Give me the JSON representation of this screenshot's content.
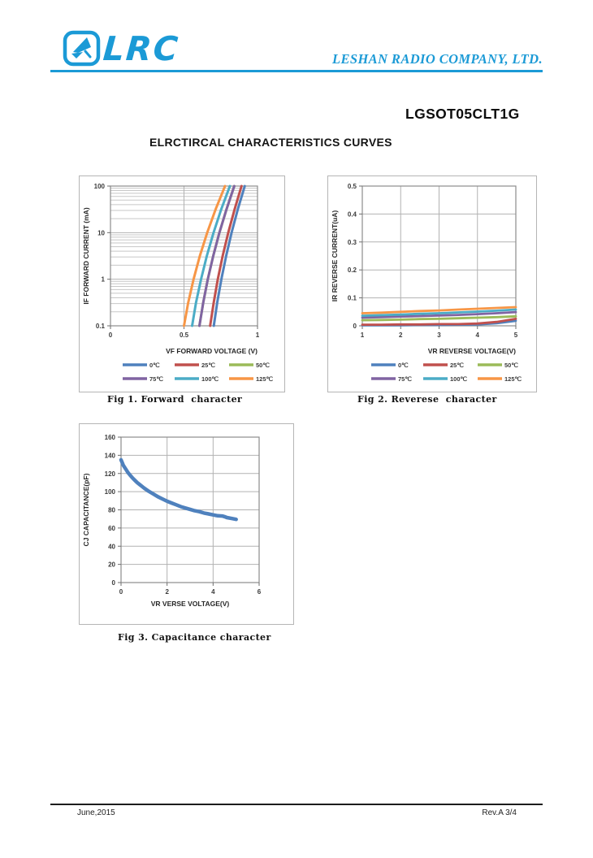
{
  "page": {
    "accent_color": "#1b9ad6",
    "header": {
      "logo_text": "LRC",
      "logo_icon": "satellite-dish-icon",
      "company": "LESHAN RADIO COMPANY, LTD."
    },
    "part_number": "LGSOT05CLT1G",
    "section_title": "ELRCTIRCAL CHARACTERISTICS CURVES",
    "footer": {
      "date": "June,2015",
      "rev": "Rev.A 3/4"
    }
  },
  "chart_data": [
    {
      "id": "fig1",
      "type": "line",
      "caption": "Fig 1. Forward  character",
      "xlabel": "VF FORWARD VOLTAGE (V)",
      "ylabel": "IF FORWARD CURRENT (mA)",
      "xlim": [
        0,
        1
      ],
      "x_ticks": [
        0,
        0.5,
        1
      ],
      "x_tick_labels": [
        "0",
        "0.5",
        "1"
      ],
      "yscale": "log",
      "ylim": [
        0.1,
        100
      ],
      "y_ticks": [
        0.1,
        1,
        10,
        100
      ],
      "y_tick_labels": [
        "0.1",
        "1",
        "10",
        "100"
      ],
      "grid": true,
      "legend_position": "bottom",
      "series": [
        {
          "name": "0℃",
          "color": "#4F81BD",
          "points": [
            [
              0.703,
              0.1
            ],
            [
              0.726,
              0.316
            ],
            [
              0.754,
              1
            ],
            [
              0.787,
              3.16
            ],
            [
              0.824,
              10
            ],
            [
              0.866,
              31.6
            ],
            [
              0.913,
              100
            ]
          ]
        },
        {
          "name": "25℃",
          "color": "#C0504D",
          "points": [
            [
              0.678,
              0.1
            ],
            [
              0.702,
              0.316
            ],
            [
              0.73,
              1
            ],
            [
              0.763,
              3.16
            ],
            [
              0.801,
              10
            ],
            [
              0.844,
              31.6
            ],
            [
              0.891,
              100
            ]
          ]
        },
        {
          "name": "50℃",
          "color": "#9BBB59",
          "points": [
            [
              0.605,
              0.1
            ],
            [
              0.631,
              0.316
            ],
            [
              0.662,
              1
            ],
            [
              0.699,
              3.16
            ],
            [
              0.741,
              10
            ],
            [
              0.789,
              31.6
            ],
            [
              0.842,
              100
            ]
          ]
        },
        {
          "name": "75℃",
          "color": "#8064A2",
          "points": [
            [
              0.605,
              0.1
            ],
            [
              0.631,
              0.316
            ],
            [
              0.662,
              1
            ],
            [
              0.699,
              3.16
            ],
            [
              0.741,
              10
            ],
            [
              0.789,
              31.6
            ],
            [
              0.842,
              100
            ]
          ]
        },
        {
          "name": "100℃",
          "color": "#4BACC6",
          "points": [
            [
              0.555,
              0.1
            ],
            [
              0.582,
              0.316
            ],
            [
              0.616,
              1
            ],
            [
              0.655,
              3.16
            ],
            [
              0.701,
              10
            ],
            [
              0.753,
              31.6
            ],
            [
              0.812,
              100
            ]
          ]
        },
        {
          "name": "125℃",
          "color": "#F79646",
          "points": [
            [
              0.5,
              0.1
            ],
            [
              0.529,
              0.316
            ],
            [
              0.565,
              1
            ],
            [
              0.608,
              3.16
            ],
            [
              0.658,
              10
            ],
            [
              0.715,
              31.6
            ],
            [
              0.779,
              100
            ]
          ]
        }
      ]
    },
    {
      "id": "fig2",
      "type": "line",
      "caption": "Fig 2. Reverese  character",
      "xlabel": "VR REVERSE VOLTAGE(V)",
      "ylabel": "IR REVERSE CURRENT(uA)",
      "xlim": [
        1,
        5
      ],
      "x_ticks": [
        1,
        2,
        3,
        4,
        5
      ],
      "x_tick_labels": [
        "1",
        "2",
        "3",
        "4",
        "5"
      ],
      "yscale": "linear",
      "ylim": [
        0,
        0.5
      ],
      "y_ticks": [
        0,
        0.1,
        0.2,
        0.3,
        0.4,
        0.5
      ],
      "y_tick_labels": [
        "0",
        "0.1",
        "0.2",
        "0.3",
        "0.4",
        "0.5"
      ],
      "grid": true,
      "legend_position": "bottom",
      "series": [
        {
          "name": "0℃",
          "color": "#4F81BD",
          "points": [
            [
              1,
              0.002
            ],
            [
              1.5,
              0.002
            ],
            [
              2,
              0.002
            ],
            [
              2.5,
              0.003
            ],
            [
              3,
              0.003
            ],
            [
              3.5,
              0.004
            ],
            [
              4,
              0.005
            ],
            [
              4.5,
              0.009
            ],
            [
              5,
              0.018
            ]
          ]
        },
        {
          "name": "25℃",
          "color": "#C0504D",
          "points": [
            [
              1,
              0.004
            ],
            [
              1.5,
              0.004
            ],
            [
              2,
              0.005
            ],
            [
              2.5,
              0.005
            ],
            [
              3,
              0.006
            ],
            [
              3.5,
              0.006
            ],
            [
              4,
              0.008
            ],
            [
              4.5,
              0.014
            ],
            [
              5,
              0.025
            ]
          ]
        },
        {
          "name": "50℃",
          "color": "#9BBB59",
          "points": [
            [
              1,
              0.02
            ],
            [
              1.5,
              0.021
            ],
            [
              2,
              0.022
            ],
            [
              2.5,
              0.024
            ],
            [
              3,
              0.025
            ],
            [
              3.5,
              0.027
            ],
            [
              4,
              0.029
            ],
            [
              4.5,
              0.031
            ],
            [
              5,
              0.034
            ]
          ]
        },
        {
          "name": "75℃",
          "color": "#8064A2",
          "points": [
            [
              1,
              0.029
            ],
            [
              1.5,
              0.031
            ],
            [
              2,
              0.033
            ],
            [
              2.5,
              0.035
            ],
            [
              3,
              0.037
            ],
            [
              3.5,
              0.039
            ],
            [
              4,
              0.042
            ],
            [
              4.5,
              0.045
            ],
            [
              5,
              0.049
            ]
          ]
        },
        {
          "name": "100℃",
          "color": "#4BACC6",
          "points": [
            [
              1,
              0.036
            ],
            [
              1.5,
              0.038
            ],
            [
              2,
              0.04
            ],
            [
              2.5,
              0.043
            ],
            [
              3,
              0.045
            ],
            [
              3.5,
              0.048
            ],
            [
              4,
              0.051
            ],
            [
              4.5,
              0.054
            ],
            [
              5,
              0.058
            ]
          ]
        },
        {
          "name": "125℃",
          "color": "#F79646",
          "points": [
            [
              1,
              0.045
            ],
            [
              1.5,
              0.047
            ],
            [
              2,
              0.05
            ],
            [
              2.5,
              0.053
            ],
            [
              3,
              0.055
            ],
            [
              3.5,
              0.058
            ],
            [
              4,
              0.061
            ],
            [
              4.5,
              0.064
            ],
            [
              5,
              0.067
            ]
          ]
        }
      ]
    },
    {
      "id": "fig3",
      "type": "line",
      "caption": "Fig 3. Capacitance character",
      "xlabel": "VR VERSE VOLTAGE(V)",
      "ylabel": "CJ CAPACITANCE(pF)",
      "xlim": [
        0,
        6
      ],
      "x_ticks": [
        0,
        2,
        4,
        6
      ],
      "x_tick_labels": [
        "0",
        "2",
        "4",
        "6"
      ],
      "yscale": "linear",
      "ylim": [
        0,
        160
      ],
      "y_ticks": [
        0,
        20,
        40,
        60,
        80,
        100,
        120,
        140,
        160
      ],
      "y_tick_labels": [
        "0",
        "20",
        "40",
        "60",
        "80",
        "100",
        "120",
        "140",
        "160"
      ],
      "grid": true,
      "legend_position": "none",
      "series": [
        {
          "name": "CJ",
          "color": "#4F81BD",
          "points": [
            [
              0,
              135
            ],
            [
              0.05,
              132
            ],
            [
              0.1,
              129
            ],
            [
              0.2,
              125
            ],
            [
              0.3,
              121
            ],
            [
              0.4,
              118
            ],
            [
              0.5,
              115
            ],
            [
              0.6,
              112.5
            ],
            [
              0.7,
              110
            ],
            [
              0.8,
              108
            ],
            [
              0.9,
              106
            ],
            [
              1,
              104
            ],
            [
              1.2,
              100.5
            ],
            [
              1.4,
              97.5
            ],
            [
              1.6,
              94.5
            ],
            [
              1.8,
              92
            ],
            [
              2,
              89.5
            ],
            [
              2.2,
              87.5
            ],
            [
              2.4,
              85.5
            ],
            [
              2.6,
              83.5
            ],
            [
              2.8,
              82
            ],
            [
              3,
              80.5
            ],
            [
              3.2,
              79
            ],
            [
              3.4,
              78
            ],
            [
              3.6,
              76.5
            ],
            [
              3.8,
              75.5
            ],
            [
              4,
              74.5
            ],
            [
              4.2,
              73.5
            ],
            [
              4.4,
              73.2
            ],
            [
              4.5,
              72.5
            ],
            [
              4.6,
              71.5
            ],
            [
              4.8,
              70.5
            ],
            [
              5,
              69.5
            ]
          ]
        }
      ]
    }
  ]
}
